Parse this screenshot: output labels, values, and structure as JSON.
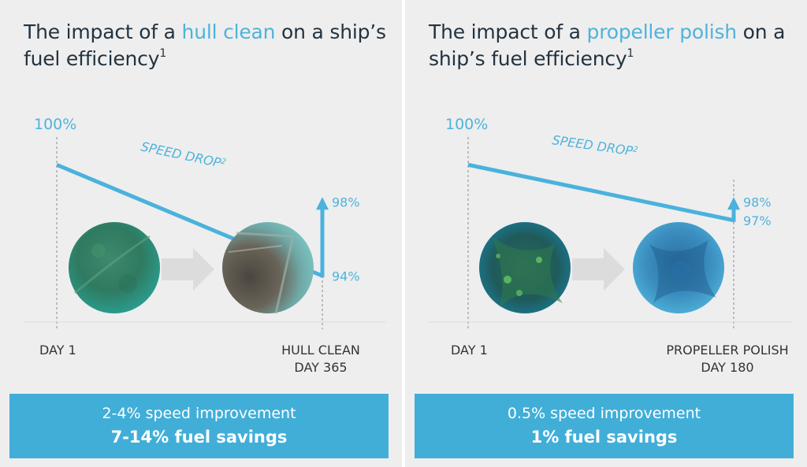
{
  "colors": {
    "accent": "#4fb3da",
    "line": "#4ab2dc",
    "title_text": "#23333f",
    "axis_text": "#333333",
    "panel_bg": "#eeeeef",
    "banner_bg": "#41aed8",
    "arrow_gray": "#dcdcdc"
  },
  "panels": [
    {
      "title_pre": "The impact of a ",
      "title_highlight": "hull clean",
      "title_post": " on a ship’s fuel efficiency",
      "title_sup": "1",
      "banner_line1": "2-4% speed improvement",
      "banner_line2": "7-14% fuel savings",
      "before_image": "fouled-hull-photo",
      "after_image": "cleaned-hull-photo",
      "chart_data": {
        "type": "line",
        "series_label": "SPEED DROP",
        "series_label_sup": "2",
        "x_start_label": "DAY 1",
        "x_end_label_line1": "HULL CLEAN",
        "x_end_label_line2": "DAY 365",
        "x_domain": [
          1,
          365
        ],
        "ylim": [
          91.5,
          101.5
        ],
        "points": [
          {
            "x": 1,
            "y": 100,
            "label": "100%"
          },
          {
            "x": 365,
            "y": 94,
            "label": "94%"
          }
        ],
        "recovery": {
          "from": 94,
          "to": 98,
          "label": "98%"
        }
      }
    },
    {
      "title_pre": "The impact of a ",
      "title_highlight": "propeller polish",
      "title_post": " on a ship’s fuel efficiency",
      "title_sup": "1",
      "banner_line1": "0.5% speed improvement",
      "banner_line2": "1% fuel savings",
      "before_image": "fouled-propeller-photo",
      "after_image": "polished-propeller-photo",
      "chart_data": {
        "type": "line",
        "series_label": "SPEED DROP",
        "series_label_sup": "2",
        "x_start_label": "DAY 1",
        "x_end_label_line1": "PROPELLER POLISH",
        "x_end_label_line2": "DAY 180",
        "x_domain": [
          1,
          180
        ],
        "ylim": [
          91.5,
          101.5
        ],
        "points": [
          {
            "x": 1,
            "y": 100,
            "label": "100%"
          },
          {
            "x": 180,
            "y": 97,
            "label": "97%"
          }
        ],
        "recovery": {
          "from": 97,
          "to": 98,
          "label": "98%"
        }
      }
    }
  ]
}
